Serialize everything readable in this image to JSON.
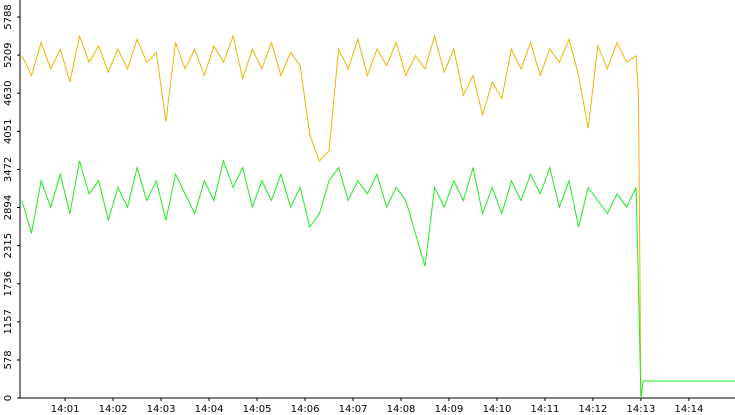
{
  "chart_data": {
    "type": "line",
    "x": [
      0.1,
      0.3,
      0.5,
      0.7,
      0.9,
      1.1,
      1.3,
      1.5,
      1.7,
      1.9,
      2.1,
      2.3,
      2.5,
      2.7,
      2.9,
      3.1,
      3.3,
      3.5,
      3.7,
      3.9,
      4.1,
      4.3,
      4.5,
      4.7,
      4.9,
      5.1,
      5.3,
      5.5,
      5.7,
      5.9,
      6.1,
      6.3,
      6.5,
      6.7,
      6.9,
      7.1,
      7.3,
      7.5,
      7.7,
      7.9,
      8.1,
      8.3,
      8.5,
      8.7,
      8.9,
      9.1,
      9.3,
      9.5,
      9.7,
      9.9,
      10.1,
      10.3,
      10.5,
      10.7,
      10.9,
      11.1,
      11.3,
      11.5,
      11.7,
      11.9,
      12.1,
      12.3,
      12.5,
      12.7,
      12.9,
      12.95,
      13.0,
      13.05,
      14.96
    ],
    "series": [
      {
        "color": "#f0b400",
        "values": [
          5200,
          4900,
          5400,
          5000,
          5300,
          4800,
          5500,
          5100,
          5350,
          4950,
          5300,
          5000,
          5450,
          5100,
          5250,
          4200,
          5400,
          5000,
          5300,
          4900,
          5350,
          5100,
          5500,
          4850,
          5300,
          5000,
          5400,
          4900,
          5250,
          5050,
          4000,
          3600,
          3750,
          5300,
          5000,
          5450,
          4900,
          5300,
          5050,
          5400,
          4900,
          5200,
          5000,
          5500,
          4950,
          5300,
          4600,
          4900,
          4300,
          4800,
          4550,
          5300,
          5000,
          5400,
          4900,
          5300,
          5100,
          5450,
          4900,
          4100,
          5350,
          5000,
          5400,
          5100,
          5200,
          4600,
          0,
          null,
          null
        ]
      },
      {
        "color": "#22e822",
        "values": [
          3000,
          2500,
          3300,
          2900,
          3400,
          2800,
          3600,
          3100,
          3300,
          2700,
          3200,
          2900,
          3500,
          3000,
          3300,
          2700,
          3400,
          3100,
          2800,
          3300,
          3000,
          3600,
          3200,
          3500,
          2900,
          3300,
          3000,
          3400,
          2900,
          3200,
          2600,
          2800,
          3300,
          3500,
          3000,
          3300,
          3100,
          3400,
          2900,
          3200,
          3000,
          2500,
          2000,
          3200,
          2900,
          3300,
          3000,
          3500,
          2800,
          3200,
          2800,
          3300,
          3000,
          3400,
          3100,
          3500,
          2900,
          3300,
          2600,
          3200,
          3000,
          2800,
          3100,
          2900,
          3200,
          1700,
          0,
          258,
          258
        ]
      }
    ],
    "xlim": [
      0.06,
      14.96
    ],
    "xticks": [
      {
        "value": 1,
        "label": "14:01"
      },
      {
        "value": 2,
        "label": "14:02"
      },
      {
        "value": 3,
        "label": "14:03"
      },
      {
        "value": 4,
        "label": "14:04"
      },
      {
        "value": 5,
        "label": "14:05"
      },
      {
        "value": 6,
        "label": "14:06"
      },
      {
        "value": 7,
        "label": "14:07"
      },
      {
        "value": 8,
        "label": "14:08"
      },
      {
        "value": 9,
        "label": "14:09"
      },
      {
        "value": 10,
        "label": "14:10"
      },
      {
        "value": 11,
        "label": "14:11"
      },
      {
        "value": 12,
        "label": "14:12"
      },
      {
        "value": 13,
        "label": "14:13"
      },
      {
        "value": 14,
        "label": "14:14"
      }
    ],
    "ylim": [
      0,
      5788
    ],
    "yticks": [
      0,
      578,
      1157,
      1736,
      2315,
      2894,
      3472,
      4051,
      4630,
      5209,
      5788
    ]
  }
}
